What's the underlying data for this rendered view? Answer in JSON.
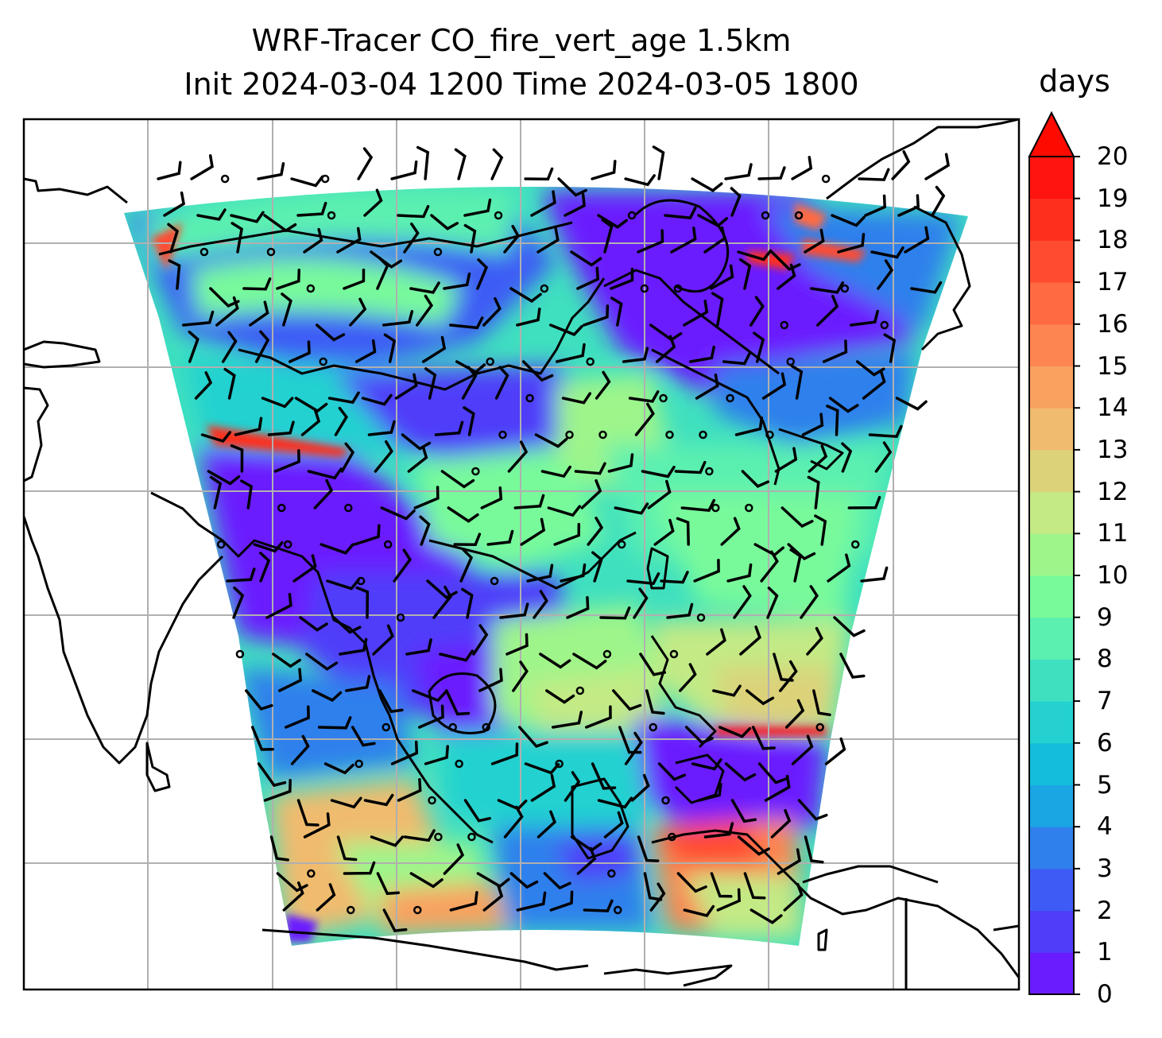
{
  "title": {
    "line1": "WRF-Tracer CO_fire_vert_age 1.5km",
    "line2": "Init 2024-03-04 1200 Time 2024-03-05 1800"
  },
  "colorbar": {
    "label": "days",
    "ticks": [
      "0",
      "1",
      "2",
      "3",
      "4",
      "5",
      "6",
      "7",
      "8",
      "9",
      "10",
      "11",
      "12",
      "13",
      "14",
      "15",
      "16",
      "17",
      "18",
      "19",
      "20"
    ],
    "extend": "max",
    "colors": [
      "#6a1cff",
      "#4f3dfa",
      "#3e5cf5",
      "#2f80ec",
      "#1aa5e3",
      "#13bddb",
      "#24d1d0",
      "#3fe0bf",
      "#5bf0b0",
      "#78fa9b",
      "#9ef58a",
      "#c3ea85",
      "#dcd27a",
      "#f0bb6e",
      "#f9a25f",
      "#fd8551",
      "#ff6a42",
      "#ff4c31",
      "#ff2f1e",
      "#ff1410"
    ],
    "extend_color": "#ff0a00"
  },
  "map": {
    "gridlines": true,
    "grid_color": "#b0b0b0",
    "coastline_color": "#000000",
    "field_name": "CO_fire_vert_age",
    "units": "days"
  }
}
